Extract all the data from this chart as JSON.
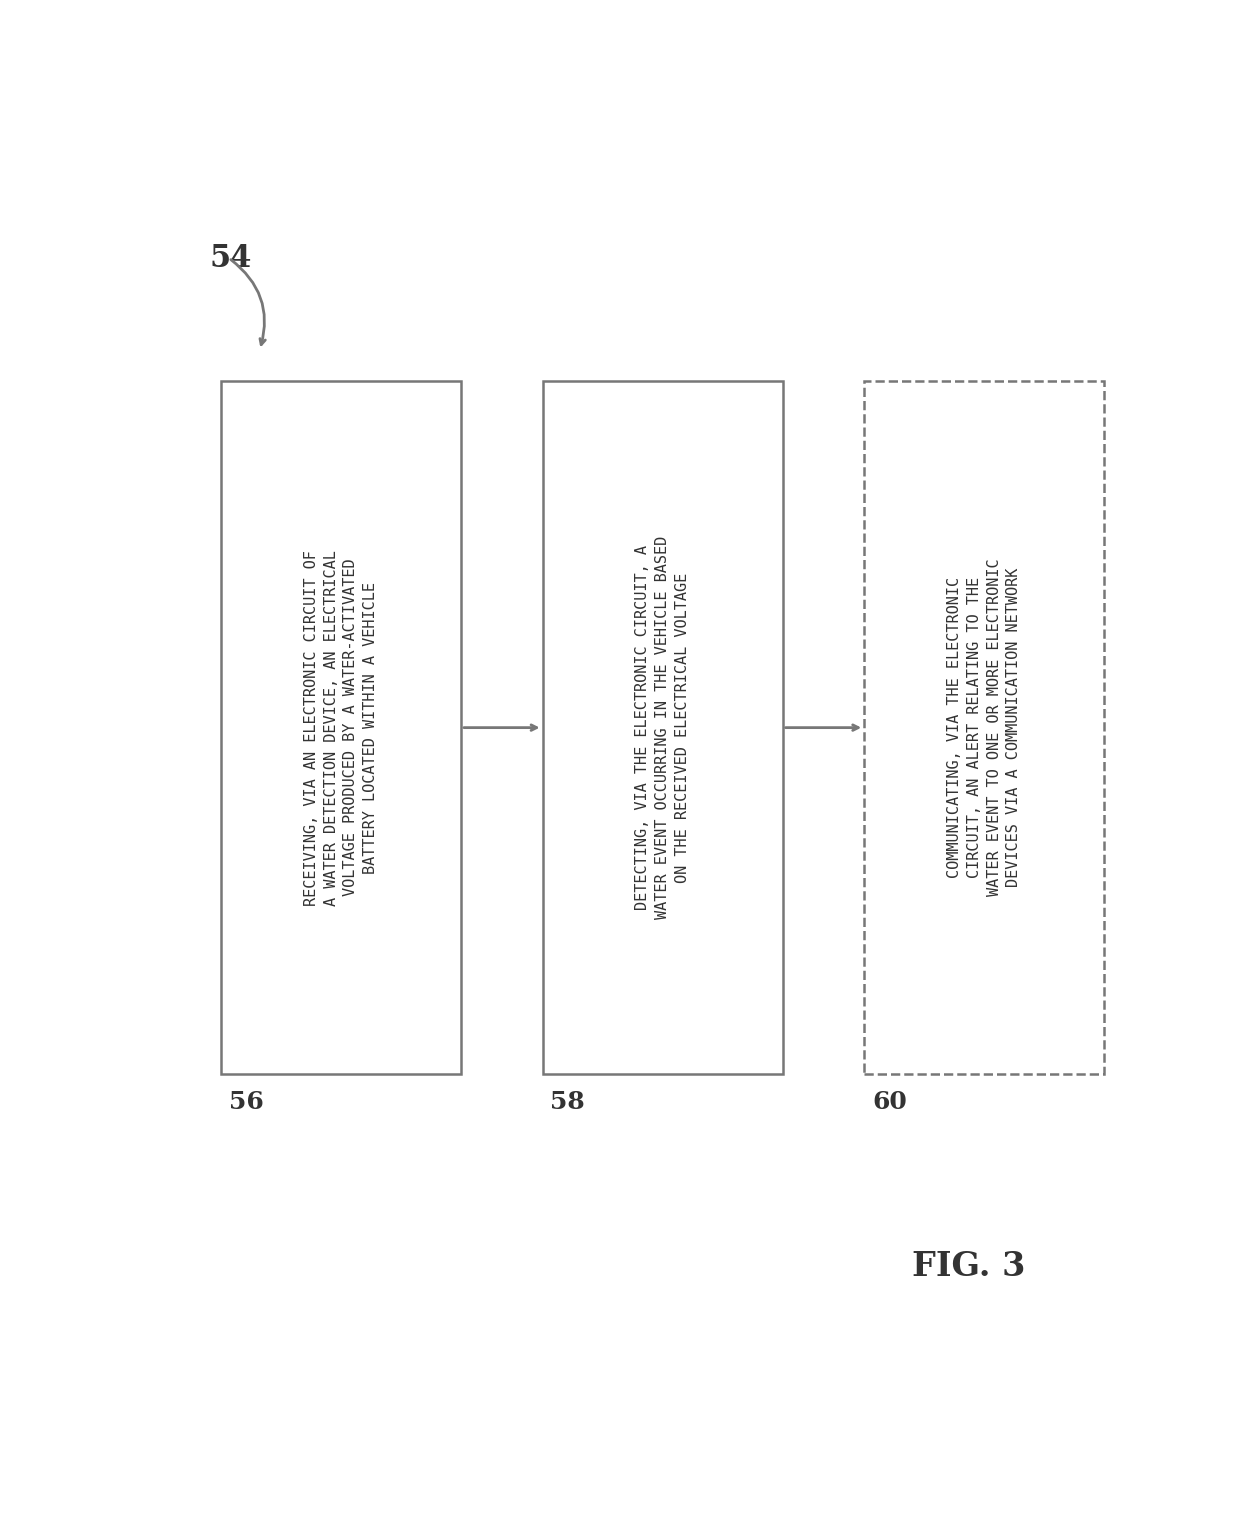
{
  "title": "FIG. 3",
  "label_54": "54",
  "label_56": "56",
  "label_58": "58",
  "label_60": "60",
  "box1_text": "RECEIVING, VIA AN ELECTRONIC CIRCUIT OF\nA WATER DETECTION DEVICE, AN ELECTRICAL\nVOLTAGE PRODUCED BY A WATER-ACTIVATED\nBATTERY LOCATED WITHIN A VEHICLE",
  "box2_text": "DETECTING, VIA THE ELECTRONIC CIRCUIT, A\nWATER EVENT OCCURRING IN THE VEHICLE BASED\nON THE RECEIVED ELECTRICAL VOLTAGE",
  "box3_text": "COMMUNICATING, VIA THE ELECTRONIC\nCIRCUIT, AN ALERT RELATING TO THE\nWATER EVENT TO ONE OR MORE ELECTRONIC\nDEVICES VIA A COMMUNICATION NETWORK",
  "bg_color": "#ffffff",
  "box_edge_color": "#777777",
  "text_color": "#333333",
  "arrow_color": "#777777",
  "box1_linestyle": "solid",
  "box2_linestyle": "solid",
  "box3_linestyle": "dashed"
}
